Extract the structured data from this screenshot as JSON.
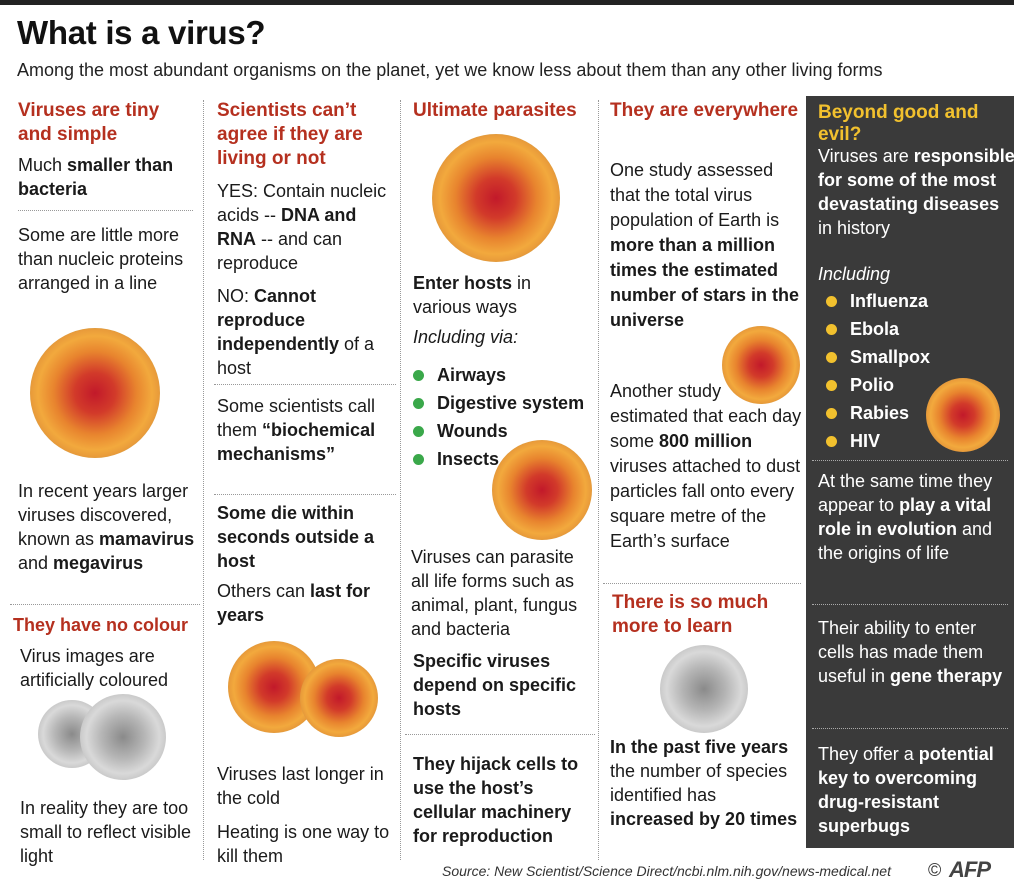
{
  "title": "What is a virus?",
  "subtitle": "Among the most abundant organisms on the planet, yet we know less about them than any other living forms",
  "col1": {
    "heading": "Viruses are tiny and simple",
    "p1_pre": "Much ",
    "p1_bold": "smaller than bacteria",
    "p2": "Some are little more than nucleic proteins arranged in a line",
    "p3_pre": "In recent years larger viruses discovered, known as ",
    "p3_b1": "mamavirus",
    "p3_mid": " and ",
    "p3_b2": "megavirus",
    "heading2": "They have no colour",
    "p4": "Virus images are artificially coloured",
    "p5": "In reality they are too small to reflect visible light"
  },
  "col2": {
    "heading": "Scientists can’t agree if they are living or not",
    "yes_pre": "YES: Contain nucleic acids -- ",
    "yes_bold": "DNA and RNA",
    "yes_post": " -- and can reproduce",
    "no_pre": "NO: ",
    "no_bold": "Cannot reproduce independently",
    "no_post": " of a host",
    "p3": "Some scientists call them",
    "p3_bold": "“biochemical mechanisms”",
    "p4_bold": "Some die within seconds outside a host",
    "p5_pre": "Others can ",
    "p5_bold": "last for years",
    "p6": "Viruses last longer in the cold",
    "p7": "Heating is one way to kill them"
  },
  "col3": {
    "heading": "Ultimate parasites",
    "p1_bold": "Enter hosts",
    "p1_post": " in various ways",
    "including": "Including via:",
    "bullets": [
      "Airways",
      "Digestive system",
      "Wounds",
      "Insects"
    ],
    "p2": "Viruses can parasite all life forms such as animal, plant, fungus and bacteria",
    "p3_bold": "Specific viruses depend on specific hosts",
    "p4_bold": "They hijack cells to use the host’s cellular machinery for reproduction"
  },
  "col4": {
    "heading": "They are everywhere",
    "p1_pre": "One study assessed that the total virus population of Earth is ",
    "p1_bold": "more than a million times the estimated number of stars in the universe",
    "p2_pre": "Another study estimated that each day some ",
    "p2_bold": "800 million",
    "p2_post": " viruses attached to dust particles fall onto every square metre of the Earth’s surface",
    "heading2": "There is so much more to learn",
    "p3_bold": "In the past five years",
    "p3_mid": " the number of species identified has ",
    "p3_bold2": "increased by 20 times"
  },
  "col5": {
    "heading": "Beyond good and evil?",
    "p1_pre": "Viruses are ",
    "p1_bold": "responsible for some of the most devastating diseases",
    "p1_post": " in history",
    "including": "Including",
    "bullets": [
      "Influenza",
      "Ebola",
      "Smallpox",
      "Polio",
      "Rabies",
      "HIV"
    ],
    "p2_pre": "At the same time they appear to ",
    "p2_bold": "play a vital role in evolution",
    "p2_post": " and the origins of life",
    "p3_pre": "Their ability to enter cells has made them useful in ",
    "p3_bold": "gene therapy",
    "p4_pre": "They offer a ",
    "p4_bold": "potential key to overcoming drug-resistant superbugs"
  },
  "footer": {
    "source": "Source: New Scientist/Science Direct/ncbi.nlm.nih.gov/news-medical.net",
    "copyright": "©",
    "logo": "AFP"
  },
  "colors": {
    "heading_red": "#b5301f",
    "accent_yellow": "#f2c12e",
    "bullet_green": "#3aa84a",
    "dark_panel": "#3a3a3a"
  }
}
